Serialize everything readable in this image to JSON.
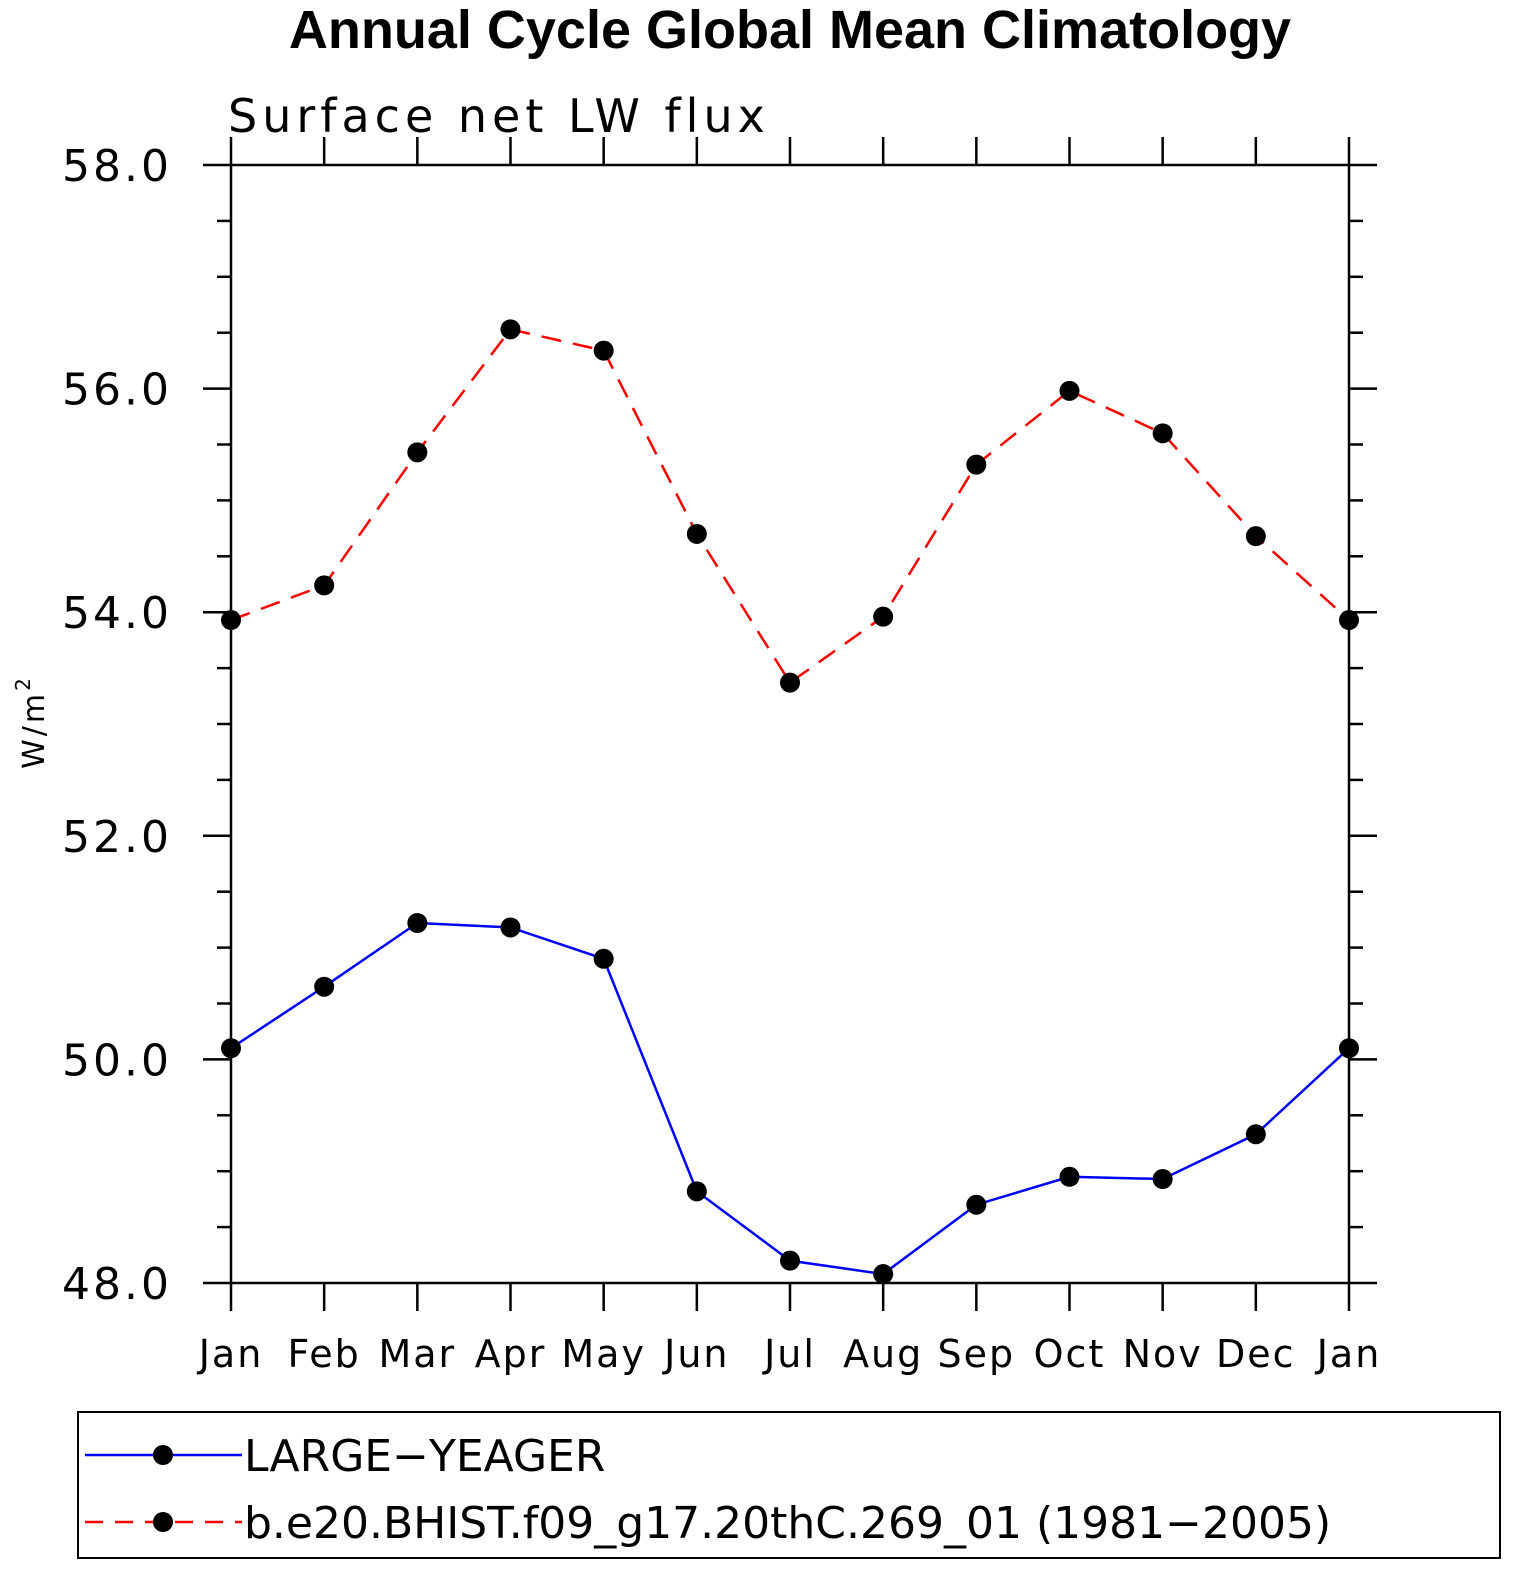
{
  "chart_data": {
    "type": "line",
    "title": "Annual Cycle Global Mean Climatology",
    "subtitle": "Surface net LW flux",
    "xlabel": "",
    "ylabel": "W/m",
    "ylabel_superscript": "2",
    "categories": [
      "Jan",
      "Feb",
      "Mar",
      "Apr",
      "May",
      "Jun",
      "Jul",
      "Aug",
      "Sep",
      "Oct",
      "Nov",
      "Dec",
      "Jan"
    ],
    "ylim": [
      48.0,
      58.0
    ],
    "yticks": [
      "48.0",
      "50.0",
      "52.0",
      "54.0",
      "56.0",
      "58.0"
    ],
    "grid": false,
    "legend_position": "bottom",
    "series": [
      {
        "name": "LARGE−YEAGER",
        "color": "#0000ff",
        "line_style": "solid",
        "marker": "filled-circle",
        "values": [
          50.1,
          50.65,
          51.22,
          51.18,
          50.9,
          48.82,
          48.2,
          48.08,
          48.7,
          48.95,
          48.93,
          49.33,
          50.1
        ]
      },
      {
        "name": "b.e20.BHIST.f09_g17.20thC.269_01 (1981−2005)",
        "color": "#ff0000",
        "line_style": "dashed",
        "marker": "filled-circle",
        "values": [
          53.93,
          54.24,
          55.43,
          56.53,
          56.34,
          54.7,
          53.37,
          53.96,
          55.32,
          55.98,
          55.6,
          54.68,
          53.93
        ]
      }
    ]
  }
}
